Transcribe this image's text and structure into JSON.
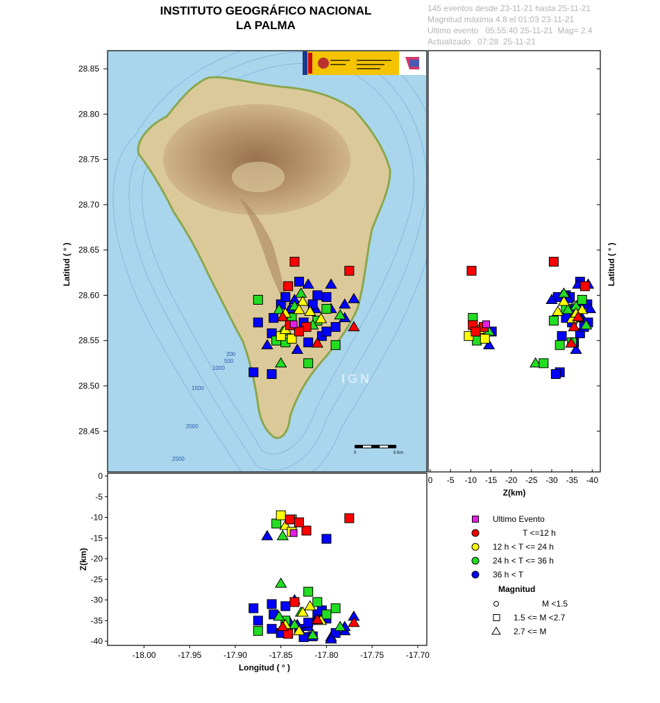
{
  "header": {
    "title_line1": "INSTITUTO GEOGRÁFICO NACIONAL",
    "title_line2": "LA PALMA",
    "info": [
      "145 eventos desde 23-11-21 hasta 25-11-21",
      "Magnitud máxima 4.8 el 01:03 23-11-21",
      "Ultimo evento   05:55:40 25-11-21  Mag= 2.4",
      "Actualizado   07:28  25-11-21"
    ]
  },
  "map": {
    "watermark": "IGN",
    "scale_labels": [
      "0",
      "5 Km"
    ],
    "contour_labels": [
      "200",
      "500",
      "1000",
      "1500",
      "2000",
      "2500"
    ],
    "logo_text": "GOBIERNO DE ESPAÑA · MINISTERIO DE TRANSPORTES, MOVILIDAD Y AGENDA URBANA",
    "colors": {
      "sea": "#a9d6ec",
      "land": "#dcc99a",
      "mountain": "#a67e57",
      "coast_green": "#8aa74e"
    }
  },
  "chart_data": {
    "type": "scatter",
    "panels": {
      "map": {
        "xlabel": "",
        "ylabel": "Latitud ( ° )",
        "xlim": [
          -18.04,
          -17.69
        ],
        "ylim": [
          28.405,
          28.87
        ],
        "yticks": [
          "28.45",
          "28.50",
          "28.55",
          "28.60",
          "28.65",
          "28.70",
          "28.75",
          "28.80",
          "28.85"
        ]
      },
      "depth_lat": {
        "xlabel": "Z(km)",
        "ylabel": "Latitud ( ° )",
        "xlim": [
          0,
          -42
        ],
        "ylim": [
          28.405,
          28.87
        ],
        "xticks": [
          "0",
          "-5",
          "-10",
          "-15",
          "-20",
          "-25",
          "-30",
          "-35",
          "-40"
        ]
      },
      "lon_depth": {
        "xlabel": "Longitud ( ° )",
        "ylabel": "Z(km)",
        "xlim": [
          -18.04,
          -17.69
        ],
        "ylim": [
          -41,
          0
        ],
        "xticks": [
          "-18.00",
          "-17.95",
          "-17.90",
          "-17.85",
          "-17.80",
          "-17.75",
          "-17.70"
        ],
        "yticks": [
          "0",
          "-5",
          "-10",
          "-15",
          "-20",
          "-25",
          "-30",
          "-35",
          "-40"
        ]
      }
    },
    "legend": {
      "color_title": "",
      "colors": [
        {
          "label": "Ultimo Evento",
          "color": "#e61ee6"
        },
        {
          "label": "T <=12 h",
          "color": "#ff0000"
        },
        {
          "label": "12 h  < T <= 24 h",
          "color": "#ffff00"
        },
        {
          "label": "24 h  < T <= 36 h",
          "color": "#22dd22"
        },
        {
          "label": "36 h <  T",
          "color": "#0000ff"
        }
      ],
      "magnitude_title": "Magnitud",
      "shapes": [
        {
          "label": "M <1.5",
          "shape": "circle"
        },
        {
          "label": "1.5 <= M <2.7",
          "shape": "square"
        },
        {
          "label": "2.7 <= M",
          "shape": "triangle"
        }
      ]
    },
    "events": [
      {
        "lon": -17.835,
        "lat": 28.637,
        "depth": -30.5,
        "mag": "square",
        "cat": "r"
      },
      {
        "lon": -17.775,
        "lat": 28.627,
        "depth": -10.2,
        "mag": "square",
        "cat": "r"
      },
      {
        "lon": -17.842,
        "lat": 28.61,
        "depth": -38.2,
        "mag": "square",
        "cat": "r"
      },
      {
        "lon": -17.822,
        "lat": 28.565,
        "depth": -13.2,
        "mag": "square",
        "cat": "r"
      },
      {
        "lon": -17.848,
        "lat": 28.576,
        "depth": -36.5,
        "mag": "triangle",
        "cat": "r"
      },
      {
        "lon": -17.81,
        "lat": 28.547,
        "depth": -34.8,
        "mag": "triangle",
        "cat": "r"
      },
      {
        "lon": -17.77,
        "lat": 28.565,
        "depth": -35.5,
        "mag": "triangle",
        "cat": "r"
      },
      {
        "lon": -17.84,
        "lat": 28.567,
        "depth": -10.5,
        "mag": "square",
        "cat": "r"
      },
      {
        "lon": -17.83,
        "lat": 28.56,
        "depth": -11.2,
        "mag": "square",
        "cat": "r"
      },
      {
        "lon": -17.836,
        "lat": 28.568,
        "depth": -13.8,
        "mag": "square",
        "cat": "m"
      },
      {
        "lon": -17.85,
        "lat": 28.555,
        "depth": -9.5,
        "mag": "square",
        "cat": "y"
      },
      {
        "lon": -17.845,
        "lat": 28.562,
        "depth": -12.0,
        "mag": "triangle",
        "cat": "y"
      },
      {
        "lon": -17.838,
        "lat": 28.552,
        "depth": -13.5,
        "mag": "square",
        "cat": "y"
      },
      {
        "lon": -17.826,
        "lat": 28.593,
        "depth": -33.0,
        "mag": "triangle",
        "cat": "y"
      },
      {
        "lon": -17.818,
        "lat": 28.582,
        "depth": -31.5,
        "mag": "triangle",
        "cat": "y"
      },
      {
        "lon": -17.806,
        "lat": 28.574,
        "depth": -35.0,
        "mag": "triangle",
        "cat": "y"
      },
      {
        "lon": -17.83,
        "lat": 28.584,
        "depth": -37.5,
        "mag": "triangle",
        "cat": "y"
      },
      {
        "lon": -17.845,
        "lat": 28.58,
        "depth": -36.0,
        "mag": "triangle",
        "cat": "y"
      },
      {
        "lon": -17.855,
        "lat": 28.55,
        "depth": -11.5,
        "mag": "square",
        "cat": "g"
      },
      {
        "lon": -17.848,
        "lat": 28.56,
        "depth": -14.5,
        "mag": "triangle",
        "cat": "g"
      },
      {
        "lon": -17.85,
        "lat": 28.525,
        "depth": -26.0,
        "mag": "triangle",
        "cat": "g"
      },
      {
        "lon": -17.82,
        "lat": 28.525,
        "depth": -28.0,
        "mag": "square",
        "cat": "g"
      },
      {
        "lon": -17.875,
        "lat": 28.595,
        "depth": -37.5,
        "mag": "square",
        "cat": "g"
      },
      {
        "lon": -17.81,
        "lat": 28.572,
        "depth": -30.5,
        "mag": "square",
        "cat": "g"
      },
      {
        "lon": -17.8,
        "lat": 28.585,
        "depth": -33.5,
        "mag": "square",
        "cat": "g"
      },
      {
        "lon": -17.845,
        "lat": 28.548,
        "depth": -35.0,
        "mag": "square",
        "cat": "g"
      },
      {
        "lon": -17.79,
        "lat": 28.545,
        "depth": -32.0,
        "mag": "square",
        "cat": "g"
      },
      {
        "lon": -17.828,
        "lat": 28.602,
        "depth": -33.0,
        "mag": "triangle",
        "cat": "g"
      },
      {
        "lon": -17.785,
        "lat": 28.578,
        "depth": -36.5,
        "mag": "triangle",
        "cat": "g"
      },
      {
        "lon": -17.835,
        "lat": 28.588,
        "depth": -36.0,
        "mag": "triangle",
        "cat": "g"
      },
      {
        "lon": -17.852,
        "lat": 28.584,
        "depth": -34.0,
        "mag": "triangle",
        "cat": "g"
      },
      {
        "lon": -17.815,
        "lat": 28.567,
        "depth": -38.5,
        "mag": "triangle",
        "cat": "g"
      },
      {
        "lon": -17.838,
        "lat": 28.575,
        "depth": -10.5,
        "mag": "square",
        "cat": "g"
      },
      {
        "lon": -17.88,
        "lat": 28.515,
        "depth": -32.0,
        "mag": "square",
        "cat": "b"
      },
      {
        "lon": -17.86,
        "lat": 28.513,
        "depth": -31.0,
        "mag": "square",
        "cat": "b"
      },
      {
        "lon": -17.875,
        "lat": 28.57,
        "depth": -35.0,
        "mag": "square",
        "cat": "b"
      },
      {
        "lon": -17.85,
        "lat": 28.59,
        "depth": -38.0,
        "mag": "square",
        "cat": "b"
      },
      {
        "lon": -17.84,
        "lat": 28.585,
        "depth": -35.5,
        "mag": "triangle",
        "cat": "b"
      },
      {
        "lon": -17.83,
        "lat": 28.615,
        "depth": -37.0,
        "mag": "square",
        "cat": "b"
      },
      {
        "lon": -17.82,
        "lat": 28.612,
        "depth": -36.5,
        "mag": "triangle",
        "cat": "b"
      },
      {
        "lon": -17.81,
        "lat": 28.6,
        "depth": -33.5,
        "mag": "square",
        "cat": "b"
      },
      {
        "lon": -17.8,
        "lat": 28.598,
        "depth": -34.5,
        "mag": "square",
        "cat": "b"
      },
      {
        "lon": -17.795,
        "lat": 28.612,
        "depth": -39.0,
        "mag": "triangle",
        "cat": "b"
      },
      {
        "lon": -17.78,
        "lat": 28.575,
        "depth": -37.5,
        "mag": "triangle",
        "cat": "b"
      },
      {
        "lon": -17.77,
        "lat": 28.596,
        "depth": -34.0,
        "mag": "triangle",
        "cat": "b"
      },
      {
        "lon": -17.86,
        "lat": 28.558,
        "depth": -37.0,
        "mag": "square",
        "cat": "b"
      },
      {
        "lon": -17.865,
        "lat": 28.545,
        "depth": -14.5,
        "mag": "triangle",
        "cat": "b"
      },
      {
        "lon": -17.845,
        "lat": 28.598,
        "depth": -31.5,
        "mag": "square",
        "cat": "b"
      },
      {
        "lon": -17.812,
        "lat": 28.585,
        "depth": -35.0,
        "mag": "triangle",
        "cat": "b"
      },
      {
        "lon": -17.825,
        "lat": 28.57,
        "depth": -39.0,
        "mag": "square",
        "cat": "b"
      },
      {
        "lon": -17.832,
        "lat": 28.54,
        "depth": -36.0,
        "mag": "triangle",
        "cat": "b"
      },
      {
        "lon": -17.79,
        "lat": 28.565,
        "depth": -38.0,
        "mag": "square",
        "cat": "b"
      },
      {
        "lon": -17.805,
        "lat": 28.555,
        "depth": -32.5,
        "mag": "square",
        "cat": "b"
      },
      {
        "lon": -17.815,
        "lat": 28.59,
        "depth": -38.8,
        "mag": "square",
        "cat": "b"
      },
      {
        "lon": -17.78,
        "lat": 28.59,
        "depth": -36.5,
        "mag": "triangle",
        "cat": "b"
      },
      {
        "lon": -17.858,
        "lat": 28.575,
        "depth": -33.5,
        "mag": "square",
        "cat": "b"
      },
      {
        "lon": -17.8,
        "lat": 28.56,
        "depth": -15.2,
        "mag": "square",
        "cat": "b"
      },
      {
        "lon": -17.82,
        "lat": 28.548,
        "depth": -35.5,
        "mag": "square",
        "cat": "b"
      },
      {
        "lon": -17.835,
        "lat": 28.595,
        "depth": -30.0,
        "mag": "triangle",
        "cat": "b"
      },
      {
        "lon": -17.795,
        "lat": 28.585,
        "depth": -39.5,
        "mag": "triangle",
        "cat": "b"
      }
    ]
  }
}
